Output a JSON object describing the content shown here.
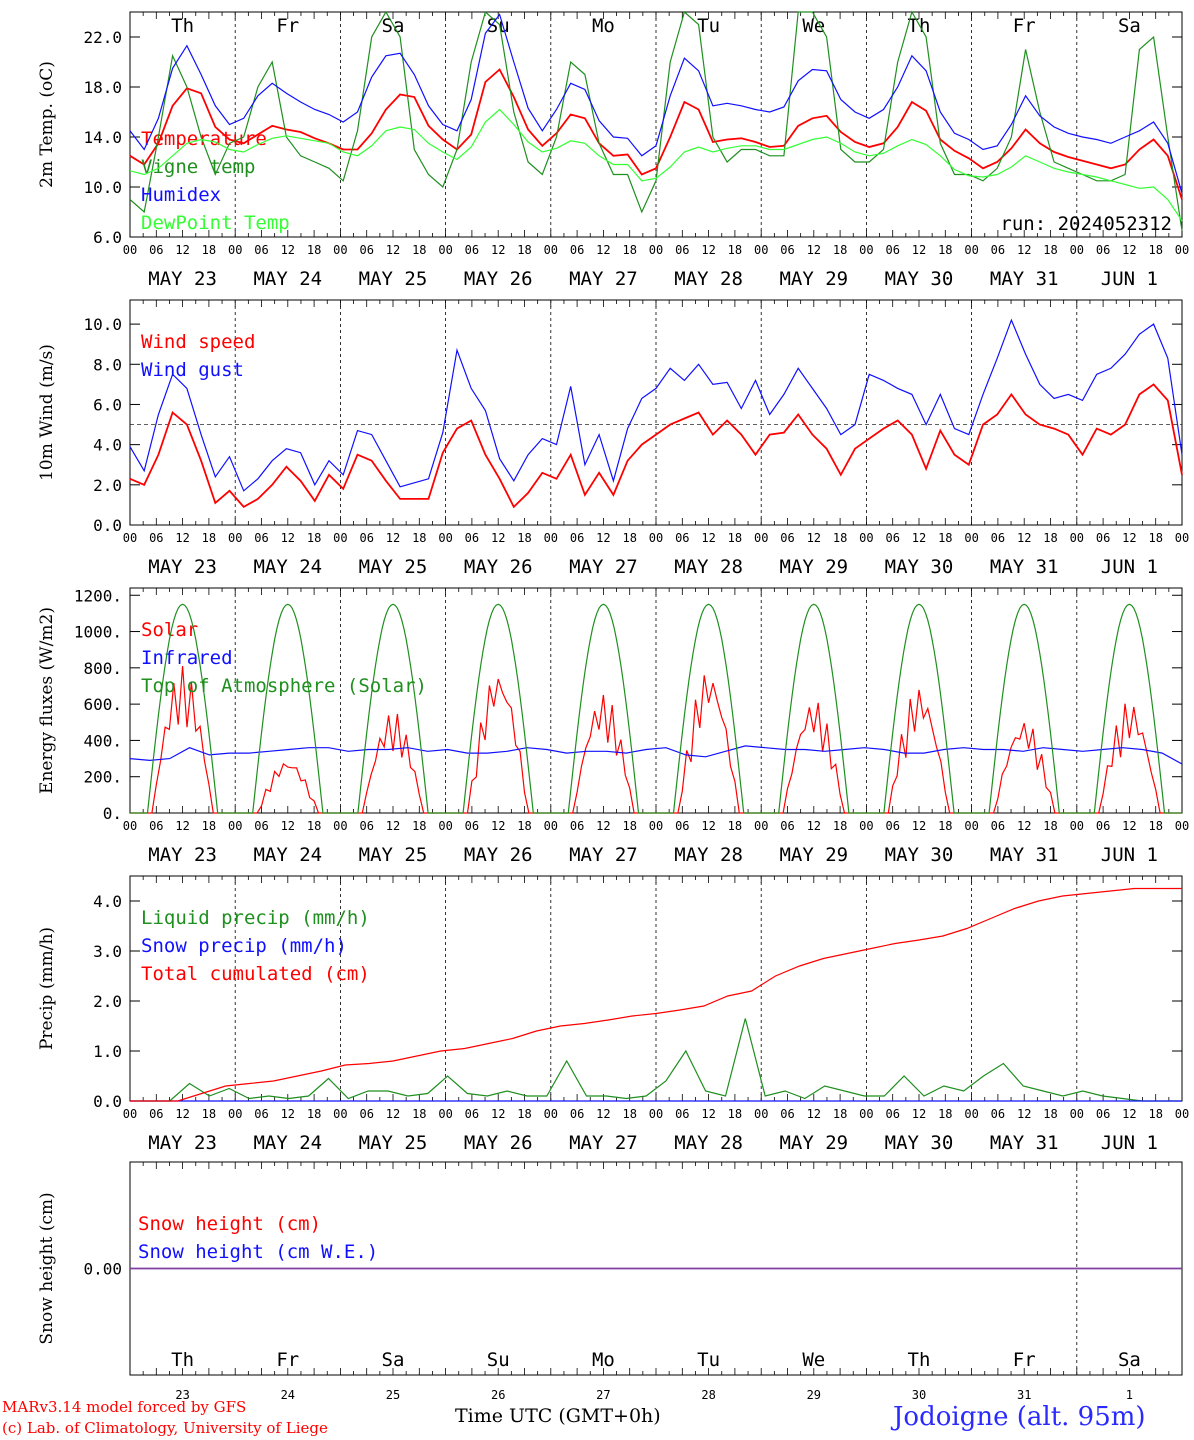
{
  "footer": {
    "model": "MARv3.14 model forced by GFS",
    "lab": "(c) Lab. of Climatology, University of Liege",
    "xtitle": "Time UTC (GMT+0h)",
    "station": "Jodoigne (alt. 95m)",
    "run": "run: 2024052312"
  },
  "colors": {
    "red": "#ff0000",
    "green": "#1f8f1f",
    "blue": "#1010ff",
    "lightgreen": "#33ff33",
    "purple": "#8040a0",
    "weekend": "#ff0000"
  },
  "days": [
    "Th",
    "Fr",
    "Sa",
    "Su",
    "Mo",
    "Tu",
    "We",
    "Th",
    "Fr",
    "Sa"
  ],
  "day_is_weekend": [
    false,
    false,
    true,
    true,
    false,
    false,
    false,
    false,
    false,
    true
  ],
  "dates": [
    "MAY 23",
    "MAY 24",
    "MAY 25",
    "MAY 26",
    "MAY 27",
    "MAY 28",
    "MAY 29",
    "MAY 30",
    "MAY 31",
    "JUN  1"
  ],
  "day_numbers": [
    "23",
    "24",
    "25",
    "26",
    "27",
    "28",
    "29",
    "30",
    "31",
    "1"
  ],
  "hour_ticks": [
    "00",
    "06",
    "12",
    "18"
  ],
  "chart_data": [
    {
      "type": "line",
      "ylabel": "2m Temp. (oC)",
      "ylim": [
        6.0,
        24.0
      ],
      "yticks": [
        6,
        10,
        14,
        18,
        22
      ],
      "ytick_labels": [
        "6.0",
        "10.0",
        "14.0",
        "18.0",
        "22.0"
      ],
      "x_hours": [
        0,
        3,
        6,
        9,
        12,
        15,
        18,
        21,
        24,
        27,
        30,
        33,
        36,
        39,
        42,
        45,
        48,
        51,
        54,
        57,
        60,
        63,
        66,
        69,
        72,
        75,
        78,
        81,
        84,
        87,
        90,
        93,
        96,
        99,
        102,
        105,
        108,
        111,
        114,
        117,
        120,
        123,
        126,
        129,
        132,
        135,
        138,
        141,
        144,
        147,
        150,
        153,
        156,
        159,
        162,
        165,
        168,
        171,
        174,
        177,
        180,
        183,
        186,
        189,
        192,
        195,
        198,
        201,
        204,
        207,
        210,
        213,
        216,
        219,
        222,
        225,
        228,
        231,
        234,
        237,
        240
      ],
      "series": [
        {
          "name": "Temperature",
          "color": "red",
          "values": [
            12.5,
            11.8,
            13.5,
            16.5,
            17.9,
            17.5,
            14.8,
            13.8,
            13.5,
            14.2,
            14.9,
            14.6,
            14.4,
            13.9,
            13.5,
            13.0,
            13.0,
            14.3,
            16.2,
            17.4,
            17.2,
            14.9,
            13.8,
            13.0,
            14.2,
            18.4,
            19.4,
            17.2,
            14.6,
            13.3,
            14.3,
            15.8,
            15.5,
            13.5,
            12.5,
            12.6,
            11.0,
            11.5,
            14.0,
            16.8,
            16.2,
            13.6,
            13.8,
            13.9,
            13.6,
            13.2,
            13.3,
            14.9,
            15.5,
            15.7,
            14.4,
            13.6,
            13.2,
            13.5,
            14.8,
            16.8,
            16.1,
            13.8,
            12.9,
            12.3,
            11.5,
            12.0,
            13.1,
            14.6,
            13.5,
            12.8,
            12.4,
            12.1,
            11.8,
            11.5,
            11.8,
            13.0,
            13.8,
            12.5,
            9.0
          ],
          "x_count": 75
        },
        {
          "name": "Vigne temp",
          "color": "green",
          "values": [
            9.0,
            8.0,
            14.0,
            20.5,
            18.0,
            14.0,
            11.0,
            13.5,
            14.0,
            18.0,
            20.0,
            14.0,
            12.5,
            12.0,
            11.5,
            10.5,
            14.5,
            22.0,
            24.0,
            22.0,
            13.0,
            11.0,
            10.0,
            13.0,
            20.0,
            24.0,
            23.0,
            16.0,
            12.0,
            11.0,
            14.0,
            20.0,
            19.0,
            13.5,
            11.0,
            11.0,
            8.0,
            10.5,
            20.0,
            24.0,
            23.0,
            14.0,
            12.0,
            13.0,
            13.0,
            12.5,
            12.5,
            24.0,
            24.0,
            22.0,
            13.0,
            12.0,
            12.0,
            13.0,
            20.0,
            24.0,
            22.0,
            13.5,
            11.0,
            11.0,
            10.5,
            11.5,
            14.0,
            21.0,
            16.0,
            12.0,
            11.5,
            11.0,
            10.5,
            10.5,
            11.0,
            21.0,
            22.0,
            14.0,
            6.5
          ],
          "x_count": 75
        },
        {
          "name": "Humidex",
          "color": "blue",
          "values": [
            14.5,
            13.0,
            15.5,
            19.5,
            21.3,
            19.0,
            16.5,
            15.0,
            15.5,
            17.3,
            18.3,
            17.5,
            16.8,
            16.2,
            15.8,
            15.2,
            16.0,
            18.8,
            20.5,
            20.7,
            19.0,
            16.5,
            15.0,
            14.5,
            17.0,
            22.3,
            23.8,
            20.0,
            16.3,
            14.5,
            16.2,
            18.3,
            17.8,
            15.3,
            14.0,
            13.9,
            12.5,
            13.3,
            17.3,
            20.3,
            19.3,
            16.5,
            16.7,
            16.5,
            16.2,
            16.0,
            16.4,
            18.5,
            19.4,
            19.3,
            17.0,
            16.0,
            15.5,
            16.2,
            18.0,
            20.5,
            19.3,
            16.0,
            14.3,
            13.8,
            13.0,
            13.3,
            15.0,
            17.3,
            15.7,
            14.8,
            14.3,
            14.0,
            13.8,
            13.5,
            14.0,
            14.5,
            15.2,
            13.5,
            9.5
          ],
          "x_count": 75
        },
        {
          "name": "DewPoint Temp",
          "color": "lightgreen",
          "values": [
            11.3,
            11.0,
            11.5,
            12.5,
            13.5,
            13.8,
            13.6,
            13.0,
            12.8,
            13.4,
            13.9,
            14.1,
            13.9,
            13.7,
            13.5,
            12.8,
            12.5,
            13.3,
            14.5,
            14.8,
            14.6,
            13.5,
            12.8,
            12.2,
            13.2,
            15.2,
            16.2,
            15.0,
            13.6,
            12.8,
            13.1,
            13.7,
            13.5,
            12.5,
            11.8,
            11.8,
            10.5,
            10.7,
            11.6,
            12.8,
            13.2,
            12.8,
            13.1,
            13.3,
            13.3,
            13.0,
            13.0,
            13.4,
            13.8,
            14.0,
            13.5,
            12.8,
            12.5,
            12.7,
            13.3,
            13.8,
            13.4,
            12.5,
            11.4,
            10.9,
            10.8,
            11.0,
            11.6,
            12.5,
            12.0,
            11.5,
            11.2,
            11.0,
            10.8,
            10.5,
            10.2,
            9.9,
            10.0,
            9.0,
            7.3
          ],
          "x_count": 75
        }
      ]
    },
    {
      "type": "line",
      "ylabel": "10m Wind (m/s)",
      "ylim": [
        0,
        11.2
      ],
      "yticks": [
        0,
        2,
        4,
        6,
        8,
        10
      ],
      "ytick_labels": [
        "0.0",
        "2.0",
        "4.0",
        "6.0",
        "8.0",
        "10.0"
      ],
      "ref_line": 5.0,
      "series": [
        {
          "name": "Wind speed",
          "color": "red",
          "values": [
            2.3,
            2.0,
            3.5,
            5.6,
            5.0,
            3.2,
            1.1,
            1.7,
            0.9,
            1.3,
            2.0,
            2.9,
            2.2,
            1.2,
            2.5,
            1.8,
            3.5,
            3.2,
            2.2,
            1.3,
            1.3,
            1.3,
            3.6,
            4.8,
            5.2,
            3.5,
            2.3,
            0.9,
            1.6,
            2.6,
            2.3,
            3.5,
            1.5,
            2.6,
            1.5,
            3.2,
            4.0,
            4.5,
            5.0,
            5.3,
            5.6,
            4.5,
            5.2,
            4.5,
            3.5,
            4.5,
            4.6,
            5.5,
            4.5,
            3.8,
            2.5,
            3.8,
            4.3,
            4.8,
            5.2,
            4.5,
            2.8,
            4.7,
            3.5,
            3.0,
            5.0,
            5.5,
            6.5,
            5.5,
            5.0,
            4.8,
            4.5,
            3.5,
            4.8,
            4.5,
            5.0,
            6.5,
            7.0,
            6.2,
            2.5
          ],
          "x_count": 75
        },
        {
          "name": "Wind gust",
          "color": "blue",
          "values": [
            3.9,
            2.7,
            5.5,
            7.5,
            6.8,
            4.5,
            2.4,
            3.4,
            1.7,
            2.3,
            3.2,
            3.8,
            3.6,
            2.0,
            3.2,
            2.5,
            4.7,
            4.5,
            3.2,
            1.9,
            2.1,
            2.3,
            4.6,
            8.7,
            6.8,
            5.7,
            3.3,
            2.2,
            3.5,
            4.3,
            4.0,
            6.9,
            3.0,
            4.5,
            2.2,
            4.8,
            6.3,
            6.8,
            7.8,
            7.2,
            8.0,
            7.0,
            7.1,
            5.8,
            7.2,
            5.5,
            6.5,
            7.8,
            6.8,
            5.8,
            4.5,
            5.0,
            7.5,
            7.2,
            6.8,
            6.5,
            5.0,
            6.5,
            4.8,
            4.5,
            6.5,
            8.3,
            10.2,
            8.5,
            7.0,
            6.3,
            6.5,
            6.2,
            7.5,
            7.8,
            8.5,
            9.5,
            10.0,
            8.3,
            3.5
          ],
          "x_count": 75
        }
      ]
    },
    {
      "type": "line",
      "ylabel": "Energy fluxes (W/m2)",
      "ylim": [
        0,
        1240
      ],
      "yticks": [
        0,
        200,
        400,
        600,
        800,
        1000,
        1200
      ],
      "ytick_labels": [
        "0.",
        "200.",
        "400.",
        "600.",
        "800.",
        "1000.",
        "1200."
      ],
      "series": [
        {
          "name": "Solar",
          "color": "red",
          "peaks": [
            810,
            300,
            560,
            800,
            660,
            800,
            630,
            700,
            520,
            620
          ],
          "shape": "spiky"
        },
        {
          "name": "Infrared",
          "color": "blue",
          "values": [
            300,
            290,
            300,
            360,
            320,
            330,
            330,
            340,
            350,
            360,
            360,
            340,
            350,
            350,
            360,
            340,
            350,
            330,
            330,
            340,
            360,
            350,
            330,
            340,
            340,
            330,
            350,
            360,
            320,
            310,
            340,
            370,
            360,
            350,
            350,
            340,
            350,
            360,
            350,
            330,
            330,
            350,
            360,
            350,
            350,
            340,
            360,
            350,
            340,
            350,
            360,
            350,
            330,
            270
          ],
          "x_count": 54
        },
        {
          "name": "Top of Atmosphere (Solar)",
          "color": "green",
          "peak": 1150,
          "shape": "daily-arc"
        }
      ]
    },
    {
      "type": "line",
      "ylabel": "Precip (mm/h)",
      "ylim": [
        0,
        4.5
      ],
      "yticks": [
        0,
        1,
        2,
        3,
        4
      ],
      "ytick_labels": [
        "0.0",
        "1.0",
        "2.0",
        "3.0",
        "4.0"
      ],
      "series": [
        {
          "name": "Liquid precip (mm/h)",
          "color": "green",
          "values": [
            0,
            0,
            0,
            0.35,
            0.1,
            0.25,
            0.05,
            0.1,
            0.05,
            0.1,
            0.45,
            0.05,
            0.2,
            0.2,
            0.1,
            0.15,
            0.5,
            0.15,
            0.1,
            0.2,
            0.1,
            0.1,
            0.8,
            0.1,
            0.1,
            0.05,
            0.1,
            0.4,
            1.0,
            0.2,
            0.1,
            1.65,
            0.1,
            0.2,
            0.05,
            0.3,
            0.2,
            0.1,
            0.1,
            0.5,
            0.1,
            0.3,
            0.2,
            0.5,
            0.75,
            0.3,
            0.2,
            0.1,
            0.2,
            0.1,
            0.05,
            0.0,
            0.0,
            0.0
          ],
          "x_count": 54
        },
        {
          "name": "Snow precip (mm/h)",
          "color": "blue",
          "values": [
            0,
            0
          ],
          "x_count": 2
        },
        {
          "name": "Total cumulated (cm)",
          "color": "red",
          "values": [
            0,
            0,
            0,
            0.15,
            0.3,
            0.35,
            0.4,
            0.5,
            0.6,
            0.72,
            0.75,
            0.8,
            0.9,
            1.0,
            1.05,
            1.15,
            1.25,
            1.4,
            1.5,
            1.55,
            1.62,
            1.7,
            1.75,
            1.82,
            1.9,
            2.1,
            2.2,
            2.5,
            2.7,
            2.85,
            2.95,
            3.05,
            3.15,
            3.22,
            3.3,
            3.45,
            3.65,
            3.85,
            4.0,
            4.1,
            4.15,
            4.2,
            4.25,
            4.25,
            4.25
          ],
          "x_count": 45
        }
      ]
    },
    {
      "type": "line",
      "ylabel": "Snow height (cm)",
      "ylim": [
        -1,
        1
      ],
      "yticks": [
        0
      ],
      "ytick_labels": [
        "0.00"
      ],
      "series": [
        {
          "name": "Snow height (cm)",
          "color": "red",
          "values": [
            0,
            0
          ],
          "x_count": 2
        },
        {
          "name": "Snow height (cm W.E.)",
          "color": "blue",
          "values": [
            0,
            0
          ],
          "x_count": 2
        }
      ]
    }
  ]
}
